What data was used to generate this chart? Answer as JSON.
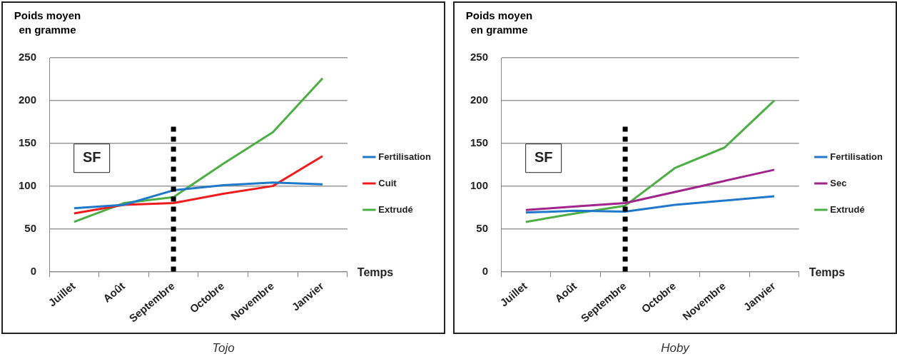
{
  "chart_data": [
    {
      "type": "line",
      "title": "Tojo",
      "ylabel": "Poids moyen en gramme",
      "xlabel": "Temps",
      "categories": [
        "Juillet",
        "Août",
        "Septembre",
        "Octobre",
        "Novembre",
        "Janvier"
      ],
      "series": [
        {
          "name": "Fertilisation",
          "color": "#1f78c8",
          "values": [
            74,
            78,
            95,
            101,
            104,
            102
          ]
        },
        {
          "name": "Cuit",
          "color": "#ee1c1c",
          "values": [
            68,
            78,
            80,
            91,
            100,
            135
          ]
        },
        {
          "name": "Extrudé",
          "color": "#4cae44",
          "values": [
            58,
            80,
            87,
            126,
            163,
            226
          ]
        }
      ],
      "ylim": [
        0,
        250
      ],
      "yticks": [
        0,
        50,
        100,
        150,
        200,
        250
      ],
      "grid": "y",
      "legend": "right",
      "marker": "none",
      "line_style": "solid",
      "ref_lines": [
        {
          "axis": "x",
          "value": "Septembre",
          "color": "#000000",
          "line_style": "dotted"
        }
      ],
      "annotations": [
        "SF"
      ]
    },
    {
      "type": "line",
      "title": "Hoby",
      "ylabel": "Poids moyen en gramme",
      "xlabel": "Temps",
      "categories": [
        "Juillet",
        "Août",
        "Septembre",
        "Octobre",
        "Novembre",
        "Janvier"
      ],
      "series": [
        {
          "name": "Fertilisation",
          "color": "#1f78c8",
          "values": [
            69,
            71,
            70,
            78,
            83,
            88
          ]
        },
        {
          "name": "Sec",
          "color": "#a0248c",
          "values": [
            72,
            76,
            80,
            93,
            106,
            119
          ]
        },
        {
          "name": "Extrudé",
          "color": "#4cae44",
          "values": [
            58,
            68,
            77,
            121,
            145,
            200
          ]
        }
      ],
      "ylim": [
        0,
        250
      ],
      "yticks": [
        0,
        50,
        100,
        150,
        200,
        250
      ],
      "grid": "y",
      "legend": "right",
      "marker": "none",
      "line_style": "solid",
      "ref_lines": [
        {
          "axis": "x",
          "value": "Septembre",
          "color": "#000000",
          "line_style": "dotted"
        }
      ],
      "annotations": [
        "SF"
      ]
    }
  ]
}
